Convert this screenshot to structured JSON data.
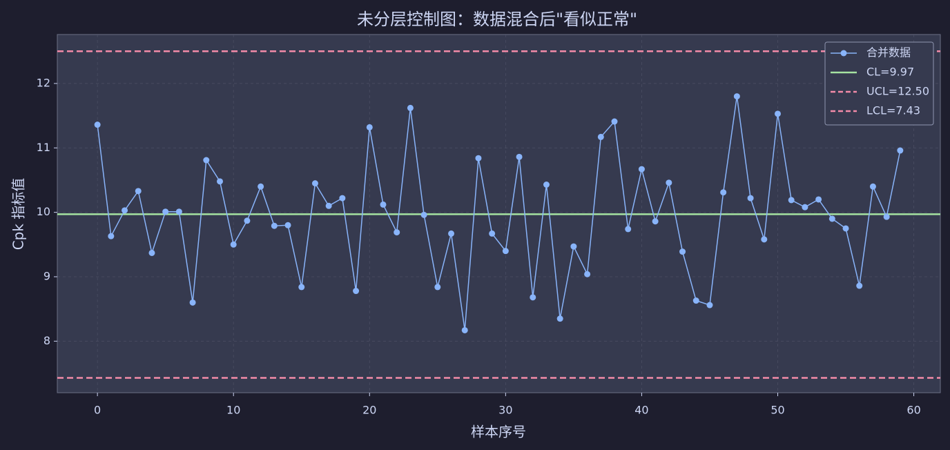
{
  "chart_data": {
    "type": "line",
    "title": "未分层控制图：数据混合后\"看似正常\"",
    "x_label": "样本序号",
    "y_label": "Cpk 指标值",
    "x": [
      0,
      1,
      2,
      3,
      4,
      5,
      6,
      7,
      8,
      9,
      10,
      11,
      12,
      13,
      14,
      15,
      16,
      17,
      18,
      19,
      20,
      21,
      22,
      23,
      24,
      25,
      26,
      27,
      28,
      29,
      30,
      31,
      32,
      33,
      34,
      35,
      36,
      37,
      38,
      39,
      40,
      41,
      42,
      43,
      44,
      45,
      46,
      47,
      48,
      49,
      50,
      51,
      52,
      53,
      54,
      55,
      56,
      57,
      58,
      59
    ],
    "series": [
      {
        "name": "合并数据",
        "color": "#89b4fa",
        "values": [
          11.36,
          9.63,
          10.03,
          10.33,
          9.37,
          10.01,
          10.01,
          8.6,
          10.81,
          10.48,
          9.5,
          9.87,
          10.4,
          9.79,
          9.8,
          8.84,
          10.45,
          10.1,
          10.22,
          8.78,
          11.32,
          10.12,
          9.69,
          11.62,
          9.96,
          8.84,
          9.67,
          8.17,
          10.84,
          9.67,
          9.4,
          10.86,
          8.68,
          10.43,
          8.35,
          9.47,
          9.04,
          11.17,
          11.41,
          9.74,
          10.67,
          9.86,
          10.46,
          9.39,
          8.63,
          8.56,
          10.31,
          11.8,
          10.22,
          9.58,
          11.53,
          10.19,
          10.08,
          10.2,
          9.9,
          9.75,
          8.86,
          10.4,
          9.93,
          10.96
        ]
      }
    ],
    "ref_lines": [
      {
        "name": "CL=9.97",
        "value": 9.97,
        "color": "#a6e3a1",
        "dashed": false
      },
      {
        "name": "UCL=12.50",
        "value": 12.5,
        "color": "#f38ba8",
        "dashed": true
      },
      {
        "name": "LCL=7.43",
        "value": 7.43,
        "color": "#f38ba8",
        "dashed": true
      }
    ],
    "xlim": [
      -2.95,
      61.95
    ],
    "ylim": [
      7.2,
      12.76
    ],
    "xticks": [
      0,
      10,
      20,
      30,
      40,
      50,
      60
    ],
    "yticks": [
      8,
      9,
      10,
      11,
      12
    ],
    "grid": true,
    "legend": "upper right"
  }
}
